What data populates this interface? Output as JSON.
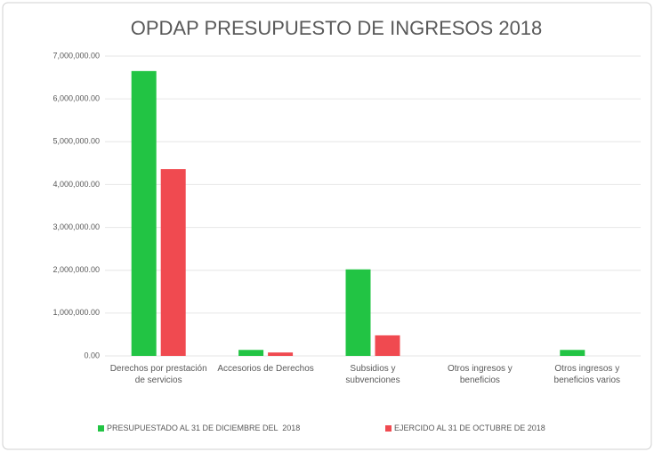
{
  "chart_data": {
    "type": "bar",
    "title": "OPDAP PRESUPUESTO DE INGRESOS 2018",
    "categories": [
      "Derechos por prestación de servicios",
      "Accesorios de Derechos",
      "Subsidios y subvenciones",
      "Otros ingresos y beneficios",
      "Otros ingresos y beneficios varios"
    ],
    "series": [
      {
        "name": "PRESUPUESTADO AL 31 DE DICIEMBRE DEL  2018",
        "color": "#22c444",
        "values": [
          6650000,
          140000,
          2020000,
          0,
          140000
        ]
      },
      {
        "name": "EJERCIDO AL 31 DE OCTUBRE DE 2018",
        "color": "#f04a50",
        "values": [
          4360000,
          80000,
          480000,
          0,
          0
        ]
      }
    ],
    "ylim": [
      0,
      7000000
    ],
    "yticks": [
      {
        "value": 0,
        "label": "0.00"
      },
      {
        "value": 1000000,
        "label": "1,000,000.00"
      },
      {
        "value": 2000000,
        "label": "2,000,000.00"
      },
      {
        "value": 3000000,
        "label": "3,000,000.00"
      },
      {
        "value": 4000000,
        "label": "4,000,000.00"
      },
      {
        "value": 5000000,
        "label": "5,000,000.00"
      },
      {
        "value": 6000000,
        "label": "6,000,000.00"
      },
      {
        "value": 7000000,
        "label": "7,000,000.00"
      }
    ],
    "grid": true,
    "legend": "bottom"
  }
}
